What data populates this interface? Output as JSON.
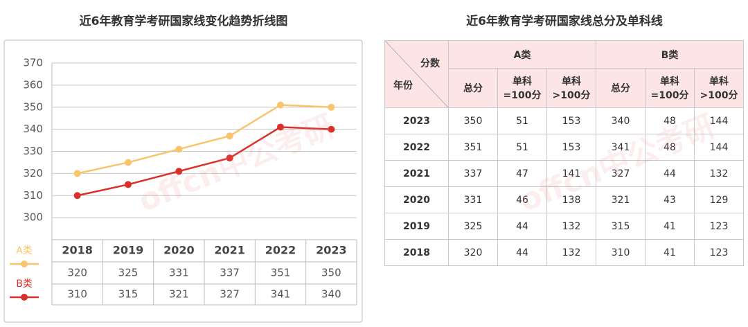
{
  "chart_data": {
    "type": "line",
    "title": "近6年教育学考研国家线变化趋势折线图",
    "categories": [
      2018,
      2019,
      2020,
      2021,
      2022,
      2023
    ],
    "series": [
      {
        "name": "A类",
        "color": "#f9c46e",
        "values": [
          320,
          325,
          331,
          337,
          351,
          350
        ]
      },
      {
        "name": "B类",
        "color": "#d9312a",
        "values": [
          310,
          315,
          321,
          327,
          341,
          340
        ]
      }
    ],
    "ylim": [
      290,
      370
    ],
    "yticks": [
      300,
      310,
      320,
      330,
      340,
      350,
      360,
      370
    ],
    "grid": true
  },
  "watermark": "offcn中公考研",
  "table": {
    "title": "近6年教育学考研国家线总分及单科线",
    "corner_top": "分数",
    "corner_bottom": "年份",
    "groups": [
      "A类",
      "B类"
    ],
    "subheaders": [
      "总分",
      "单科\n=100分",
      "单科\n>100分",
      "总分",
      "单科\n=100分",
      "单科\n>100分"
    ],
    "rows": [
      [
        2023,
        350,
        51,
        153,
        340,
        48,
        144
      ],
      [
        2022,
        351,
        51,
        153,
        341,
        48,
        144
      ],
      [
        2021,
        337,
        47,
        141,
        327,
        44,
        132
      ],
      [
        2020,
        331,
        46,
        138,
        321,
        43,
        129
      ],
      [
        2019,
        325,
        44,
        132,
        315,
        41,
        123
      ],
      [
        2018,
        320,
        44,
        132,
        310,
        41,
        123
      ]
    ]
  }
}
